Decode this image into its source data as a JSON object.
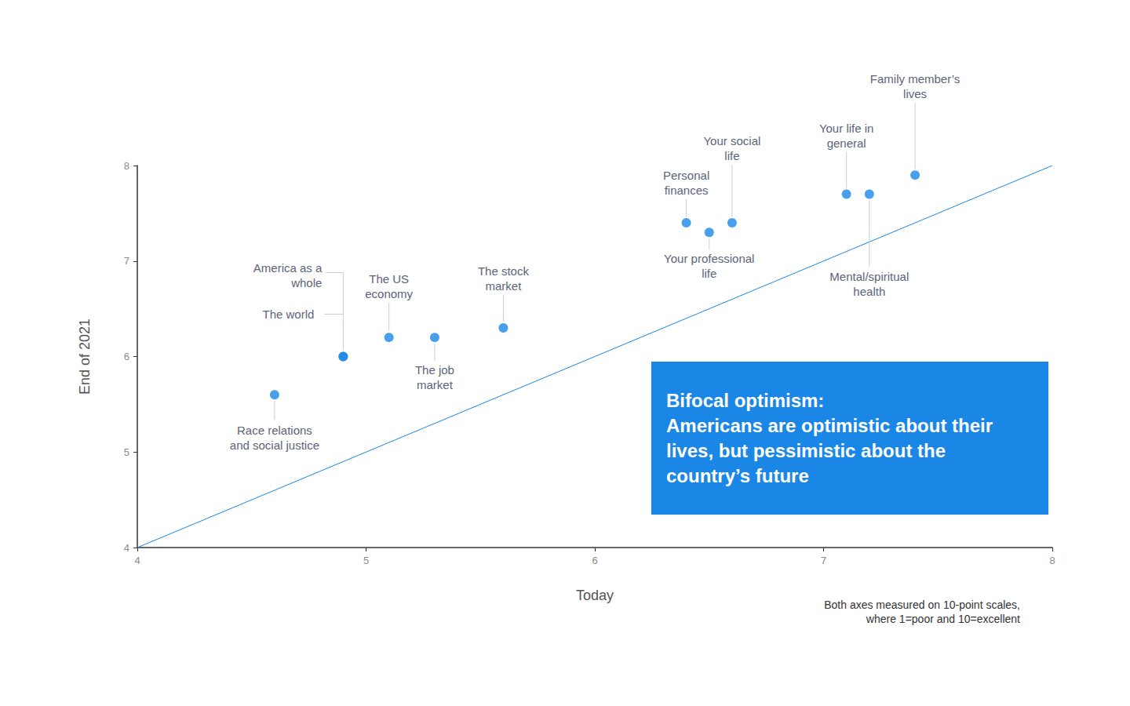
{
  "chart_data": {
    "type": "scatter",
    "title": "Bifocal optimism:",
    "subtitle": "Americans are optimistic about their lives, but pessimistic about the country’s future",
    "x_label": "Today",
    "y_label": "End of 2021",
    "note": "Both axes measured on 10-point scales, where 1=poor and 10=excellent",
    "labels": [
      "Race relations and social justice",
      "America as a whole",
      "The world",
      "The US economy",
      "The job market",
      "The stock market",
      "Personal finances",
      "Your professional life",
      "Your social life",
      "Your life in general",
      "Mental/spiritual health",
      "Family member’s lives"
    ],
    "x": [
      4.6,
      4.9,
      4.9,
      5.1,
      5.3,
      5.6,
      6.4,
      6.5,
      6.6,
      7.1,
      7.2,
      7.4
    ],
    "y": [
      5.6,
      6.0,
      6.0,
      6.2,
      6.2,
      6.3,
      7.4,
      7.3,
      7.4,
      7.7,
      7.7,
      7.9
    ],
    "color": "#1a87e6",
    "marker": "circle",
    "reference_line": {
      "x": [
        4,
        8
      ],
      "y": [
        4,
        8
      ]
    },
    "xlim": [
      4,
      8
    ],
    "ylim": [
      4,
      8
    ],
    "xticks": [
      4,
      5,
      6,
      7,
      8
    ],
    "yticks": [
      4,
      5,
      6,
      7,
      8
    ],
    "grid": false
  }
}
